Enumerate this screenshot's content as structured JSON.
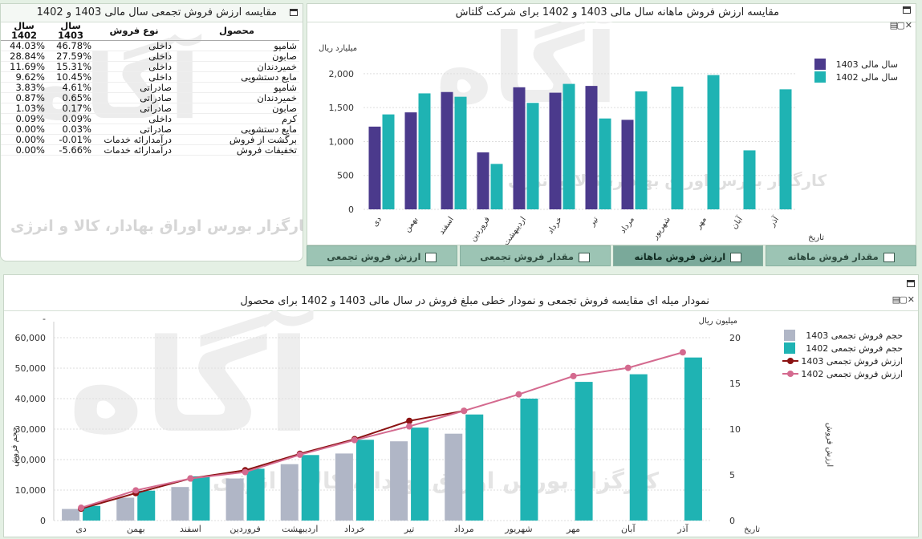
{
  "table_panel": {
    "title": "مقایسه ارزش فروش تجمعی سال مالی 1403 و 1402",
    "headers": [
      "محصول",
      "نوع فروش",
      "سال 1403",
      "سال 1402"
    ],
    "rows": [
      {
        "product": "شامپو",
        "type": "داخلی",
        "v1403": "46.78%",
        "v1402": "44.03%"
      },
      {
        "product": "صابون",
        "type": "داخلی",
        "v1403": "27.59%",
        "v1402": "28.84%"
      },
      {
        "product": "خمیردندان",
        "type": "داخلی",
        "v1403": "15.31%",
        "v1402": "11.69%"
      },
      {
        "product": "مایع دستشویی",
        "type": "داخلی",
        "v1403": "10.45%",
        "v1402": "9.62%"
      },
      {
        "product": "شامپو",
        "type": "صادراتی",
        "v1403": "4.61%",
        "v1402": "3.83%"
      },
      {
        "product": "خمیردندان",
        "type": "صادراتی",
        "v1403": "0.65%",
        "v1402": "0.87%"
      },
      {
        "product": "صابون",
        "type": "صادراتی",
        "v1403": "0.17%",
        "v1402": "1.03%"
      },
      {
        "product": "کرم",
        "type": "داخلی",
        "v1403": "0.09%",
        "v1402": "0.09%"
      },
      {
        "product": "مایع دستشویی",
        "type": "صادراتی",
        "v1403": "0.03%",
        "v1402": "0.00%"
      },
      {
        "product": "برگشت از فروش",
        "type": "درآمدارائه خدمات",
        "v1403": "-0.01%",
        "v1402": "0.00%"
      },
      {
        "product": "تخفیفات فروش",
        "type": "درآمدارائه خدمات",
        "v1403": "-5.66%",
        "v1402": "0.00%"
      }
    ]
  },
  "watermark": {
    "logo": "آگاه",
    "text": "کارگزار بورس اوراق بهادار، کالا و انرژی"
  },
  "tabs": [
    "مقدار فروش ماهانه",
    "ارزش فروش ماهانه",
    "مقدار فروش تجمعی",
    "ارزش فروش تجمعی"
  ],
  "colors": {
    "s1403": "#4b3a8c",
    "s1402": "#1fb3b3",
    "bar1403": "#b0b6c6",
    "line1403": "#8b1212",
    "line1402": "#d46a8f"
  },
  "chart_data": [
    {
      "type": "bar",
      "title": "مقایسه ارزش فروش ماهانه سال مالی 1403 و 1402 برای شرکت گلتاش",
      "ylabel": "میلیارد ریال",
      "xlabel": "تاریخ",
      "categories": [
        "دی",
        "بهمن",
        "اسفند",
        "فروردین",
        "اردیبهشت",
        "خرداد",
        "تیر",
        "مرداد",
        "شهریور",
        "مهر",
        "آبان",
        "آذر"
      ],
      "yticks": [
        0,
        500,
        1000,
        1500,
        2000
      ],
      "ylim": [
        0,
        2200
      ],
      "legend": "top-right",
      "series": [
        {
          "name": "سال مالی 1403",
          "values": [
            1220,
            1430,
            1730,
            840,
            1800,
            1720,
            1820,
            1320,
            null,
            null,
            null,
            null
          ]
        },
        {
          "name": "سال مالی 1402",
          "values": [
            1400,
            1710,
            1660,
            670,
            1570,
            1850,
            1340,
            1740,
            1810,
            1980,
            870,
            1770
          ]
        }
      ]
    },
    {
      "type": "bar",
      "title": "نمودار میله ای مقایسه فروش تجمعی و نمودار خطی مبلغ فروش در سال مالی 1403 و 1402 برای محصول",
      "ylabel": "حجم فروش",
      "y2label": "ارزش فروش",
      "y2unit": "میلیون ریال",
      "xlabel": "تاریخ",
      "categories": [
        "دی",
        "بهمن",
        "اسفند",
        "فروردین",
        "اردیبهشت",
        "خرداد",
        "تیر",
        "مرداد",
        "شهریور",
        "مهر",
        "آبان",
        "آذر"
      ],
      "yticks": [
        0,
        10000,
        20000,
        30000,
        40000,
        50000,
        60000
      ],
      "yticklabels": [
        "0",
        "10,000",
        "20,000",
        "30,000",
        "40,000",
        "50,000",
        "60,000"
      ],
      "ylim": [
        0,
        60000
      ],
      "y2ticks": [
        0,
        5,
        10,
        15,
        20
      ],
      "y2lim": [
        0,
        20
      ],
      "legend": "top-right",
      "series": [
        {
          "name": "حجم فروش تجمعی  1403",
          "kind": "bar",
          "values": [
            3800,
            7500,
            11000,
            13800,
            18500,
            22000,
            26000,
            28500,
            null,
            null,
            null,
            null
          ]
        },
        {
          "name": "حجم فروش تجمعی 1402",
          "kind": "bar",
          "values": [
            4800,
            9800,
            14500,
            17000,
            21500,
            26500,
            30500,
            34800,
            40000,
            45500,
            48000,
            53500
          ]
        },
        {
          "name": "ارزش فروش تجمعی 1403",
          "kind": "line",
          "values": [
            1.3,
            3.0,
            4.6,
            5.5,
            7.3,
            8.9,
            10.9,
            12.0,
            null,
            null,
            null,
            null
          ]
        },
        {
          "name": "ارزش فروش تجمعی 1402",
          "kind": "line",
          "values": [
            1.4,
            3.3,
            4.6,
            5.3,
            7.2,
            8.8,
            10.3,
            12.0,
            13.8,
            15.8,
            16.7,
            18.4
          ]
        }
      ]
    }
  ]
}
